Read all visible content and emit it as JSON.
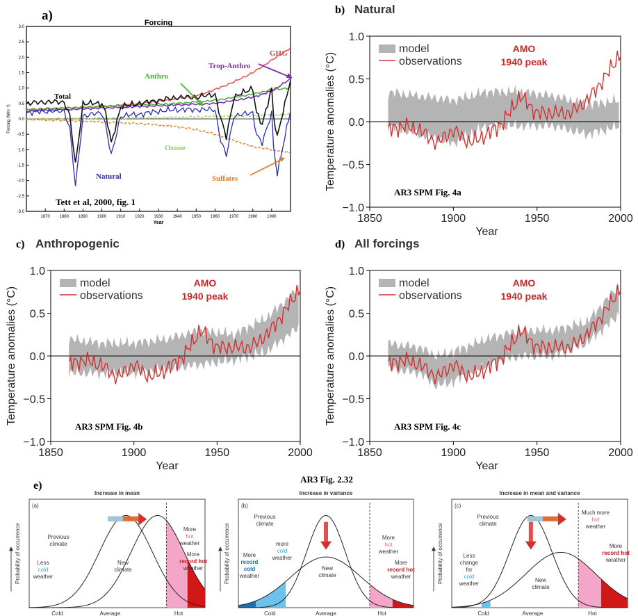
{
  "panel_letters": {
    "a": "a)",
    "b": "b)",
    "c": "c)",
    "d": "d)",
    "e": "e)"
  },
  "chart_data": [
    {
      "id": "a",
      "type": "line",
      "title": "Forcing",
      "ylabel": "Forcing (Wm⁻²)",
      "xlabel": "Year",
      "xlim": [
        1860,
        2000
      ],
      "ylim": [
        -3.0,
        3.0
      ],
      "xticks": [
        1870,
        1880,
        1890,
        1900,
        1910,
        1920,
        1930,
        1940,
        1950,
        1960,
        1970,
        1980,
        1990
      ],
      "yticks": [
        -3.0,
        -2.5,
        -2.0,
        -1.5,
        -1.0,
        -0.5,
        0.0,
        0.5,
        1.0,
        1.5,
        2.0,
        2.5,
        3.0
      ],
      "labels": {
        "total": "Total",
        "anthro": "Anthro",
        "trop": "Trop-Anthro",
        "ghg": "GHG",
        "ozone": "Ozone",
        "natural": "Natural",
        "sulfates": "Sulfates",
        "citation": "Tett et al, 2000, fig. 1"
      },
      "series": [
        {
          "name": "GHG",
          "color": "#e05a5a",
          "x": [
            1860,
            1880,
            1900,
            1920,
            1940,
            1950,
            1960,
            1970,
            1980,
            1990,
            2000
          ],
          "y": [
            0.3,
            0.35,
            0.4,
            0.5,
            0.65,
            0.75,
            0.95,
            1.2,
            1.5,
            1.9,
            2.3
          ]
        },
        {
          "name": "Anthro",
          "color": "#4caf3a",
          "x": [
            1860,
            1880,
            1900,
            1920,
            1940,
            1950,
            1960,
            1970,
            1980,
            1990,
            2000
          ],
          "y": [
            0.3,
            0.35,
            0.4,
            0.45,
            0.5,
            0.55,
            0.6,
            0.7,
            0.8,
            0.95,
            1.0
          ]
        },
        {
          "name": "Trop-Anthro",
          "color": "#7a2fb5",
          "x": [
            1860,
            1900,
            1940,
            1960,
            1980,
            1990,
            2000
          ],
          "y": [
            0.25,
            0.35,
            0.45,
            0.5,
            0.7,
            0.9,
            1.3
          ]
        },
        {
          "name": "Ozone",
          "color": "#a8d86a",
          "x": [
            1860,
            1900,
            1940,
            1960,
            1980,
            1990,
            2000
          ],
          "y": [
            0.0,
            0.02,
            0.05,
            0.08,
            0.1,
            0.12,
            0.15
          ]
        },
        {
          "name": "Sulfates",
          "color": "#e38a3c",
          "x": [
            1860,
            1880,
            1900,
            1920,
            1940,
            1950,
            1960,
            1970,
            1980,
            1990,
            2000
          ],
          "y": [
            -0.02,
            -0.05,
            -0.1,
            -0.15,
            -0.25,
            -0.35,
            -0.5,
            -0.7,
            -0.9,
            -1.0,
            -1.1
          ]
        },
        {
          "name": "Natural",
          "color": "#2a2ab5",
          "x": [
            1860,
            1870,
            1880,
            1883,
            1886,
            1890,
            1900,
            1902,
            1905,
            1910,
            1920,
            1930,
            1940,
            1950,
            1960,
            1963,
            1966,
            1970,
            1980,
            1982,
            1985,
            1990,
            1991,
            1993,
            2000
          ],
          "y": [
            0.2,
            0.25,
            0.25,
            -0.3,
            -2.2,
            0.1,
            0.2,
            -0.2,
            -1.2,
            0.1,
            0.15,
            0.25,
            0.3,
            0.3,
            0.3,
            -0.7,
            -1.2,
            0.1,
            0.2,
            -0.5,
            -0.8,
            0.2,
            -0.9,
            -1.8,
            0.3
          ]
        },
        {
          "name": "Total",
          "color": "#111111",
          "x": [
            1860,
            1870,
            1880,
            1883,
            1886,
            1890,
            1900,
            1902,
            1905,
            1910,
            1920,
            1930,
            1940,
            1950,
            1960,
            1963,
            1966,
            1970,
            1980,
            1982,
            1985,
            1990,
            1991,
            1993,
            2000
          ],
          "y": [
            0.5,
            0.55,
            0.55,
            0.1,
            -1.5,
            0.5,
            0.5,
            0.2,
            -0.8,
            0.4,
            0.5,
            0.6,
            0.7,
            0.7,
            0.8,
            0.0,
            -0.6,
            0.7,
            1.0,
            0.2,
            -0.2,
            1.0,
            0.1,
            -0.6,
            1.3
          ]
        }
      ]
    },
    {
      "id": "b",
      "type": "line",
      "title": "Natural",
      "ylabel": "Temperature anomalies (°C)",
      "xlabel": "Year",
      "xlim": [
        1850,
        2000
      ],
      "ylim": [
        -1.0,
        1.0
      ],
      "xticks": [
        1850,
        1900,
        1950,
        2000
      ],
      "yticks": [
        -1.0,
        -0.5,
        0.0,
        0.5,
        1.0
      ],
      "legend": [
        "model",
        "observations"
      ],
      "annotation": [
        "AMO",
        "1940 peak"
      ],
      "citation": "AR3 SPM Fig. 4a",
      "model_band": {
        "x": [
          1860,
          1880,
          1900,
          1920,
          1940,
          1960,
          1980,
          2000
        ],
        "low": [
          -0.05,
          -0.15,
          -0.25,
          -0.05,
          -0.05,
          -0.05,
          -0.15,
          -0.05
        ],
        "high": [
          0.35,
          0.3,
          0.25,
          0.35,
          0.35,
          0.3,
          0.2,
          0.25
        ]
      },
      "observations": {
        "x": [
          1860,
          1870,
          1880,
          1890,
          1900,
          1910,
          1920,
          1930,
          1940,
          1950,
          1960,
          1970,
          1980,
          1990,
          2000
        ],
        "y": [
          -0.1,
          -0.05,
          -0.1,
          -0.25,
          -0.1,
          -0.25,
          -0.15,
          0.0,
          0.3,
          0.1,
          0.1,
          0.1,
          0.25,
          0.5,
          0.8
        ]
      }
    },
    {
      "id": "c",
      "type": "line",
      "title": "Anthropogenic",
      "ylabel": "Temperature anomalies (°C)",
      "xlabel": "Year",
      "xlim": [
        1850,
        2000
      ],
      "ylim": [
        -1.0,
        1.0
      ],
      "xticks": [
        1850,
        1900,
        1950,
        2000
      ],
      "yticks": [
        -1.0,
        -0.5,
        0.0,
        0.5,
        1.0
      ],
      "legend": [
        "model",
        "observations"
      ],
      "annotation": [
        "AMO",
        "1940 peak"
      ],
      "citation": "AR3 SPM Fig. 4b",
      "model_band": {
        "x": [
          1860,
          1880,
          1900,
          1920,
          1940,
          1960,
          1980,
          2000
        ],
        "low": [
          -0.2,
          -0.2,
          -0.2,
          -0.15,
          -0.1,
          -0.05,
          0.05,
          0.35
        ],
        "high": [
          0.2,
          0.15,
          0.15,
          0.2,
          0.3,
          0.25,
          0.45,
          0.8
        ]
      },
      "observations": {
        "x": [
          1860,
          1870,
          1880,
          1890,
          1900,
          1910,
          1920,
          1930,
          1940,
          1950,
          1960,
          1970,
          1980,
          1990,
          2000
        ],
        "y": [
          -0.1,
          -0.05,
          -0.1,
          -0.25,
          -0.1,
          -0.25,
          -0.15,
          0.0,
          0.3,
          0.1,
          0.1,
          0.1,
          0.25,
          0.5,
          0.8
        ]
      }
    },
    {
      "id": "d",
      "type": "line",
      "title": "All forcings",
      "ylabel": "Temperature anomalies (°C)",
      "xlabel": "Year",
      "xlim": [
        1850,
        2000
      ],
      "ylim": [
        -1.0,
        1.0
      ],
      "xticks": [
        1850,
        1900,
        1950,
        2000
      ],
      "yticks": [
        -1.0,
        -0.5,
        0.0,
        0.5,
        1.0
      ],
      "legend": [
        "model",
        "observations"
      ],
      "annotation": [
        "AMO",
        "1940 peak"
      ],
      "citation": "AR3 SPM Fig. 4c",
      "model_band": {
        "x": [
          1860,
          1880,
          1890,
          1900,
          1920,
          1940,
          1960,
          1980,
          2000
        ],
        "low": [
          -0.15,
          -0.2,
          -0.35,
          -0.3,
          -0.1,
          0.0,
          0.0,
          0.15,
          0.5
        ],
        "high": [
          0.15,
          0.1,
          0.0,
          0.05,
          0.2,
          0.3,
          0.3,
          0.4,
          0.85
        ]
      },
      "observations": {
        "x": [
          1860,
          1870,
          1880,
          1890,
          1900,
          1910,
          1920,
          1930,
          1940,
          1950,
          1960,
          1970,
          1980,
          1990,
          2000
        ],
        "y": [
          -0.1,
          -0.05,
          -0.1,
          -0.25,
          -0.1,
          -0.25,
          -0.15,
          0.0,
          0.3,
          0.1,
          0.1,
          0.1,
          0.25,
          0.5,
          0.8
        ]
      }
    },
    {
      "id": "e",
      "type": "area",
      "title": "AR3 Fig. 2.32",
      "ylabel": "Probability of occurrence",
      "subplots": [
        {
          "letter": "(a)",
          "title": "Increase in mean",
          "xticks": [
            "Cold",
            "Average",
            "Hot"
          ],
          "labels": [
            "Previous climate",
            "Less cold weather",
            "New climate",
            "More hot weather",
            "More record hot weather"
          ]
        },
        {
          "letter": "(b)",
          "title": "Increase in variance",
          "xticks": [
            "Cold",
            "Average",
            "Hot"
          ],
          "labels": [
            "Previous climate",
            "more cold weather",
            "More record cold weather",
            "New climate",
            "More hot weather",
            "More record hot weather"
          ]
        },
        {
          "letter": "(c)",
          "title": "Increase in mean and variance",
          "xticks": [
            "Cold",
            "Average",
            "Hot"
          ],
          "labels": [
            "Previous climate",
            "Less change for cold weather",
            "New climate",
            "Much more hot weather",
            "More record hot weather"
          ]
        }
      ]
    }
  ]
}
